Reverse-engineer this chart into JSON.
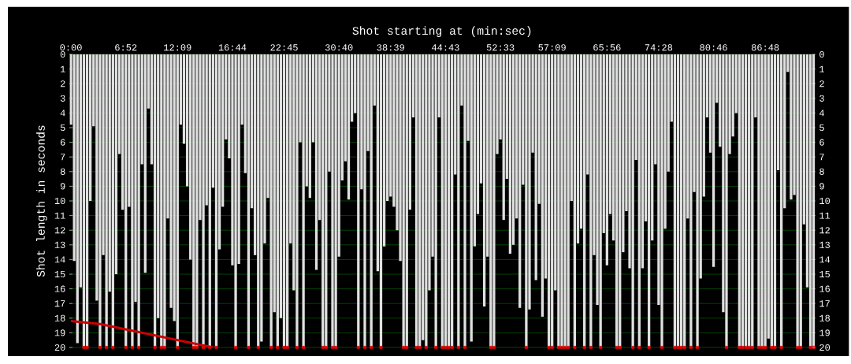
{
  "chart_data": {
    "type": "bar",
    "xlabel": "Shot starting at (min:sec)",
    "ylabel": "Shot length in seconds",
    "categories": [
      "0:00",
      null,
      null,
      null,
      null,
      null,
      null,
      null,
      null,
      null,
      null,
      null,
      null,
      null,
      null,
      null,
      null,
      "6:52",
      null,
      null,
      null,
      null,
      null,
      null,
      null,
      null,
      null,
      null,
      null,
      null,
      null,
      null,
      null,
      "12:09",
      null,
      null,
      null,
      null,
      null,
      null,
      null,
      null,
      null,
      null,
      null,
      null,
      null,
      null,
      null,
      null,
      "16:44",
      null,
      null,
      null,
      null,
      null,
      null,
      null,
      null,
      null,
      null,
      null,
      null,
      null,
      null,
      null,
      "22:45",
      null,
      null,
      null,
      null,
      null,
      null,
      null,
      null,
      null,
      null,
      null,
      null,
      null,
      null,
      null,
      null,
      "30:40",
      null,
      null,
      null,
      null,
      null,
      null,
      null,
      null,
      null,
      null,
      null,
      null,
      null,
      null,
      null,
      "38:39",
      null,
      null,
      null,
      null,
      null,
      null,
      null,
      null,
      null,
      null,
      null,
      null,
      null,
      null,
      null,
      null,
      "44:43",
      null,
      null,
      null,
      null,
      null,
      null,
      null,
      null,
      null,
      null,
      null,
      null,
      null,
      null,
      null,
      null,
      "52:33",
      null,
      null,
      null,
      null,
      null,
      null,
      null,
      null,
      null,
      null,
      null,
      null,
      null,
      null,
      null,
      "57:09",
      null,
      null,
      null,
      null,
      null,
      null,
      null,
      null,
      null,
      null,
      null,
      null,
      null,
      null,
      null,
      null,
      "65:56",
      null,
      null,
      null,
      null,
      null,
      null,
      null,
      null,
      null,
      null,
      null,
      null,
      null,
      null,
      null,
      "74:28",
      null,
      null,
      null,
      null,
      null,
      null,
      null,
      null,
      null,
      null,
      null,
      null,
      null,
      null,
      null,
      null,
      "80:46",
      null,
      null,
      null,
      null,
      null,
      null,
      null,
      null,
      null,
      null,
      null,
      null,
      null,
      null,
      null,
      "86:48",
      null,
      null,
      null,
      null,
      null,
      null,
      null,
      null,
      null,
      null,
      null,
      null,
      null,
      null,
      null
    ],
    "series": [
      {
        "color": "#e0e0e0",
        "values": [
          4.8,
          14.1,
          19.7,
          15.9,
          20,
          20,
          10.0,
          4.9,
          16.8,
          20,
          13.7,
          20,
          16.2,
          20,
          15.0,
          6.8,
          10.6,
          20,
          10.4,
          20,
          16.9,
          20,
          7.5,
          14.9,
          3.7,
          7.5,
          20,
          18.0,
          20,
          20,
          11.2,
          17.3,
          18.2,
          20,
          4.8,
          6.1,
          9.0,
          14.0,
          20,
          20,
          11.3,
          20,
          10.3,
          20,
          9.1,
          20,
          13.3,
          10.4,
          5.8,
          7.1,
          14.4,
          20,
          14.3,
          4.8,
          8.1,
          20,
          10.5,
          13.7,
          20,
          19.6,
          12.9,
          9.8,
          20,
          17.6,
          20,
          18.0,
          20,
          20,
          12.9,
          16.1,
          20,
          6.0,
          20,
          9.0,
          9.8,
          6.0,
          14.7,
          11.3,
          20,
          20,
          8.0,
          20,
          20,
          13.8,
          8.6,
          7.3,
          9.9,
          4.6,
          4.0,
          20,
          9.2,
          20,
          6.6,
          20,
          3.5,
          14.8,
          20,
          13.1,
          10.0,
          9.7,
          10.4,
          12.0,
          14.1,
          20,
          20,
          10.6,
          4.3,
          20,
          20,
          19.5,
          20,
          16.1,
          13.8,
          20,
          4.3,
          20,
          20,
          20,
          20,
          8.2,
          20,
          3.5,
          20,
          5.9,
          19.6,
          13.1,
          10.9,
          8.8,
          17.2,
          13.8,
          20,
          20,
          6.8,
          5.8,
          11.3,
          8.5,
          13.6,
          13.0,
          11.2,
          17.3,
          8.9,
          20,
          17.4,
          6.7,
          15.4,
          10.2,
          17.9,
          15.3,
          20,
          20,
          16.1,
          20,
          20,
          20,
          20,
          10.0,
          20,
          12.9,
          11.9,
          20,
          8.2,
          20,
          13.7,
          17.1,
          20,
          12.2,
          14.4,
          10.9,
          12.7,
          20,
          20,
          13.5,
          10.7,
          14.6,
          20,
          7.2,
          20,
          14.6,
          11.4,
          20,
          12.7,
          7.5,
          17.1,
          20,
          11.9,
          8.0,
          4.6,
          20,
          20,
          20,
          20,
          11.2,
          20,
          9.4,
          20,
          15.3,
          9.7,
          4.3,
          6.7,
          14.5,
          3.3,
          6.3,
          17.6,
          20,
          6.8,
          5.6,
          4.0,
          20,
          20,
          20,
          20,
          20,
          4.3,
          20,
          20,
          20,
          19.4,
          20,
          20,
          7.9,
          20,
          10.5,
          1.2,
          9.9,
          9.6,
          20,
          20,
          11.6,
          15.9,
          20,
          20
        ]
      },
      {
        "type": "scatter",
        "color": "#e00000",
        "marker": "square",
        "values": [
          null,
          null,
          null,
          null,
          20,
          20,
          null,
          null,
          null,
          20,
          null,
          20,
          null,
          20,
          null,
          null,
          null,
          20,
          null,
          20,
          null,
          20,
          null,
          null,
          null,
          null,
          20,
          null,
          20,
          20,
          null,
          null,
          null,
          20,
          null,
          null,
          null,
          null,
          20,
          20,
          null,
          20,
          null,
          20,
          null,
          20,
          null,
          null,
          null,
          null,
          null,
          20,
          null,
          null,
          null,
          20,
          null,
          null,
          20,
          null,
          null,
          null,
          20,
          null,
          20,
          null,
          20,
          20,
          null,
          null,
          20,
          null,
          20,
          null,
          null,
          null,
          null,
          null,
          20,
          20,
          null,
          20,
          20,
          null,
          null,
          null,
          null,
          null,
          null,
          20,
          null,
          20,
          null,
          20,
          null,
          null,
          20,
          null,
          null,
          null,
          null,
          null,
          null,
          20,
          20,
          null,
          null,
          20,
          20,
          null,
          20,
          null,
          null,
          20,
          null,
          20,
          20,
          20,
          20,
          null,
          20,
          null,
          20,
          null,
          null,
          null,
          null,
          null,
          null,
          null,
          20,
          20,
          null,
          null,
          null,
          null,
          null,
          null,
          null,
          null,
          null,
          20,
          null,
          null,
          null,
          null,
          null,
          null,
          20,
          20,
          null,
          20,
          20,
          20,
          20,
          null,
          20,
          null,
          null,
          20,
          null,
          20,
          null,
          null,
          20,
          null,
          null,
          null,
          null,
          20,
          20,
          null,
          null,
          null,
          20,
          null,
          20,
          null,
          null,
          20,
          null,
          null,
          null,
          20,
          null,
          null,
          null,
          20,
          20,
          20,
          20,
          null,
          20,
          null,
          20,
          null,
          null,
          null,
          null,
          null,
          null,
          null,
          null,
          20,
          null,
          null,
          null,
          20,
          20,
          20,
          20,
          20,
          null,
          20,
          20,
          20,
          null,
          20,
          20,
          null,
          20,
          null,
          null,
          null,
          null,
          20,
          20,
          null,
          null,
          20,
          20
        ]
      },
      {
        "type": "line",
        "color": "#cc0000",
        "values": [
          18.2,
          null,
          null,
          null,
          null,
          null,
          null,
          null,
          null,
          18.4,
          null,
          null,
          null,
          null,
          null,
          null,
          null,
          null,
          null,
          null,
          null,
          null,
          null,
          null,
          null,
          null,
          null,
          null,
          null,
          null,
          null,
          null,
          null,
          null,
          null,
          null,
          null,
          null,
          null,
          null,
          null,
          null,
          null,
          null,
          20,
          null,
          null,
          null,
          null,
          null,
          null,
          null,
          null,
          null,
          null,
          null,
          null,
          null,
          null,
          null,
          null,
          null,
          null,
          null,
          null,
          null,
          null,
          null,
          null,
          null,
          null,
          null,
          null,
          null,
          null,
          null,
          null,
          null,
          null,
          null,
          null,
          null,
          null,
          null,
          null,
          null,
          null,
          null,
          null,
          null,
          null,
          null,
          null,
          null,
          null,
          null,
          null,
          null,
          null,
          null,
          null,
          null,
          null,
          null,
          null,
          null,
          null,
          null,
          null,
          null,
          null,
          null,
          null,
          null,
          null,
          null,
          null,
          null,
          null,
          null,
          null,
          null,
          null,
          null,
          null,
          null,
          null,
          null,
          null,
          null,
          null,
          null,
          null,
          null,
          null,
          null,
          null,
          null,
          null,
          null,
          null,
          null,
          null,
          null,
          null,
          null,
          null,
          null,
          null,
          null,
          null,
          null,
          null,
          null,
          null,
          null,
          null,
          null,
          null,
          null,
          null,
          null,
          null,
          null,
          null,
          null,
          null,
          null,
          null,
          null,
          null,
          null,
          null,
          null,
          null,
          null,
          null,
          null,
          null,
          null,
          null,
          null,
          null,
          null,
          null,
          null,
          null,
          null,
          null,
          null,
          null,
          null,
          null,
          null,
          null,
          null,
          null,
          null,
          null,
          null,
          null,
          null,
          null,
          null,
          null,
          null,
          null,
          null,
          null,
          null,
          null,
          null,
          null,
          null,
          null,
          null,
          null,
          null,
          null,
          null,
          null,
          null,
          null,
          null,
          null,
          null,
          null,
          null,
          null,
          null,
          null
        ]
      }
    ],
    "ylim": [
      20,
      0
    ],
    "yticks": [
      0,
      1,
      2,
      3,
      4,
      5,
      6,
      7,
      8,
      9,
      10,
      11,
      12,
      13,
      14,
      15,
      16,
      17,
      18,
      19,
      20
    ],
    "y2lim": [
      20,
      0
    ],
    "y2ticks": [
      0,
      1,
      2,
      3,
      4,
      5,
      6,
      7,
      8,
      9,
      10,
      11,
      12,
      13,
      14,
      15,
      16,
      17,
      18,
      19,
      20
    ],
    "grid": "y"
  }
}
